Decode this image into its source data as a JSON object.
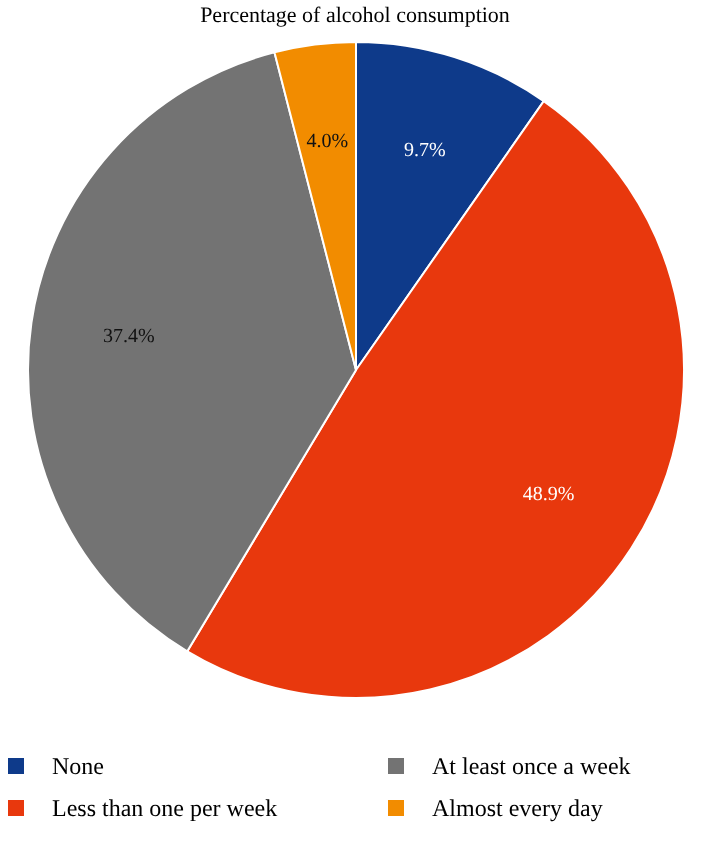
{
  "chart_data": {
    "type": "pie",
    "title": "Percentage of alcohol consumption",
    "categories": [
      "None",
      "Less than one per week",
      "At least once a week",
      "Almost every day"
    ],
    "values": [
      9.7,
      48.9,
      37.4,
      4.0
    ],
    "colors": [
      "#0e3a8a",
      "#e8380d",
      "#737373",
      "#f28c00"
    ],
    "value_labels": [
      "9.7%",
      "48.9%",
      "37.4%",
      "4.0%"
    ],
    "legend": "bottom"
  }
}
